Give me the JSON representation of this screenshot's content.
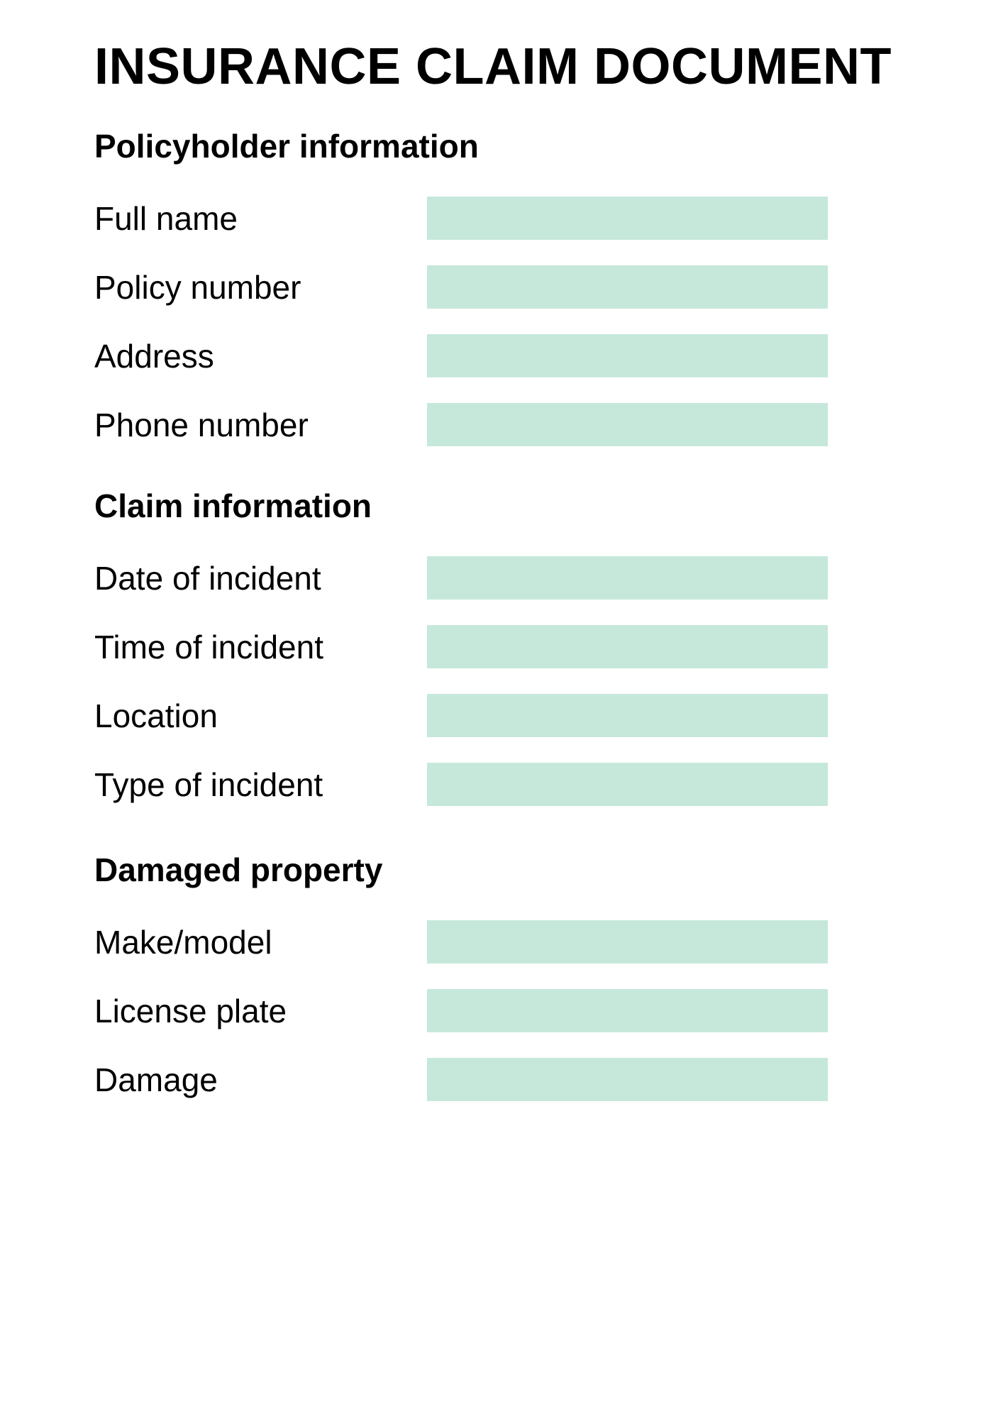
{
  "document": {
    "title": "INSURANCE CLAIM DOCUMENT",
    "colors": {
      "background": "#ffffff",
      "text": "#000000",
      "field_fill": "#c6e8da"
    },
    "sections": [
      {
        "heading": "Policyholder information",
        "fields": [
          {
            "label": "Full name",
            "value": ""
          },
          {
            "label": "Policy number",
            "value": ""
          },
          {
            "label": "Address",
            "value": ""
          },
          {
            "label": "Phone number",
            "value": ""
          }
        ]
      },
      {
        "heading": "Claim information",
        "fields": [
          {
            "label": "Date of incident",
            "value": ""
          },
          {
            "label": "Time of incident",
            "value": ""
          },
          {
            "label": "Location",
            "value": ""
          },
          {
            "label": "Type of incident",
            "value": ""
          }
        ]
      },
      {
        "heading": "Damaged property",
        "fields": [
          {
            "label": "Make/model",
            "value": ""
          },
          {
            "label": "License plate",
            "value": ""
          },
          {
            "label": "Damage",
            "value": ""
          }
        ]
      }
    ]
  }
}
